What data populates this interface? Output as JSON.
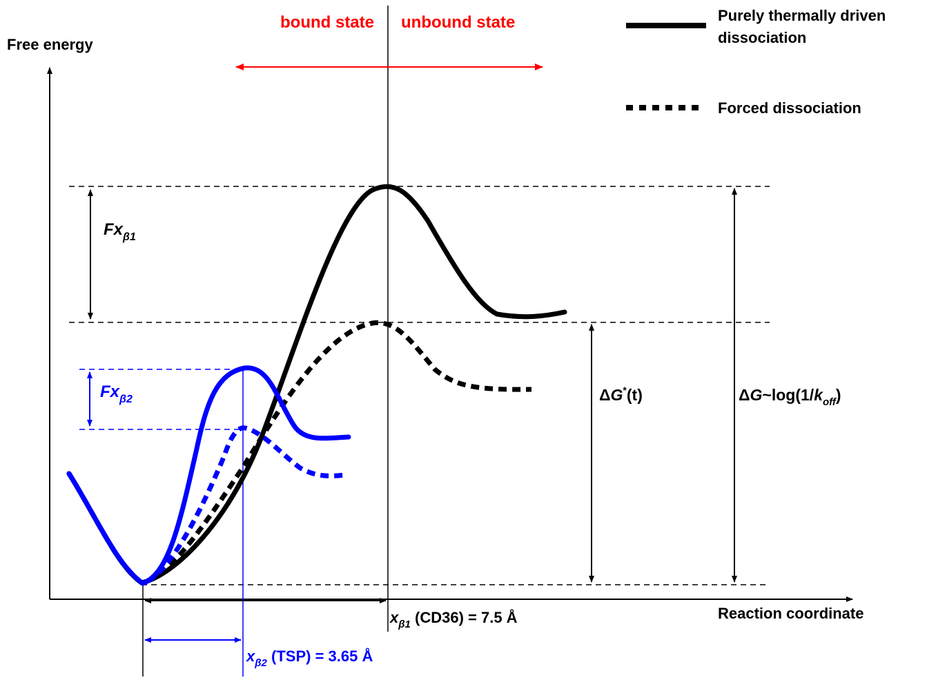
{
  "axes": {
    "y_label": "Free energy",
    "x_label": "Reaction coordinate"
  },
  "states": {
    "bound": "bound state",
    "unbound": "unbound state"
  },
  "legend": {
    "solid_line1": "Purely thermally driven",
    "solid_line2": "dissociation",
    "dashed": "Forced dissociation"
  },
  "labels": {
    "fx_b1_main": "Fx",
    "fx_b1_sub": "β1",
    "fx_b2_main": "Fx",
    "fx_b2_sub": "β2",
    "dg_star_delta": "Δ",
    "dg_star_G": "G",
    "dg_star_sup": "*",
    "dg_star_t": "(t)",
    "dg_koff_delta": "Δ",
    "dg_koff_G": "G",
    "dg_koff_mid": "~log(1/",
    "dg_koff_k": "k",
    "dg_koff_sub": "off",
    "dg_koff_end": ")",
    "xb1_main": "x",
    "xb1_sub": "β1",
    "xb1_rest": " (CD36) = 7.5 Å",
    "xb2_main": "x",
    "xb2_sub": "β2",
    "xb2_rest": " (TSP) = 3.65 Å"
  },
  "colors": {
    "black": "#000000",
    "red": "#ff0000",
    "blue": "#0000ff"
  }
}
